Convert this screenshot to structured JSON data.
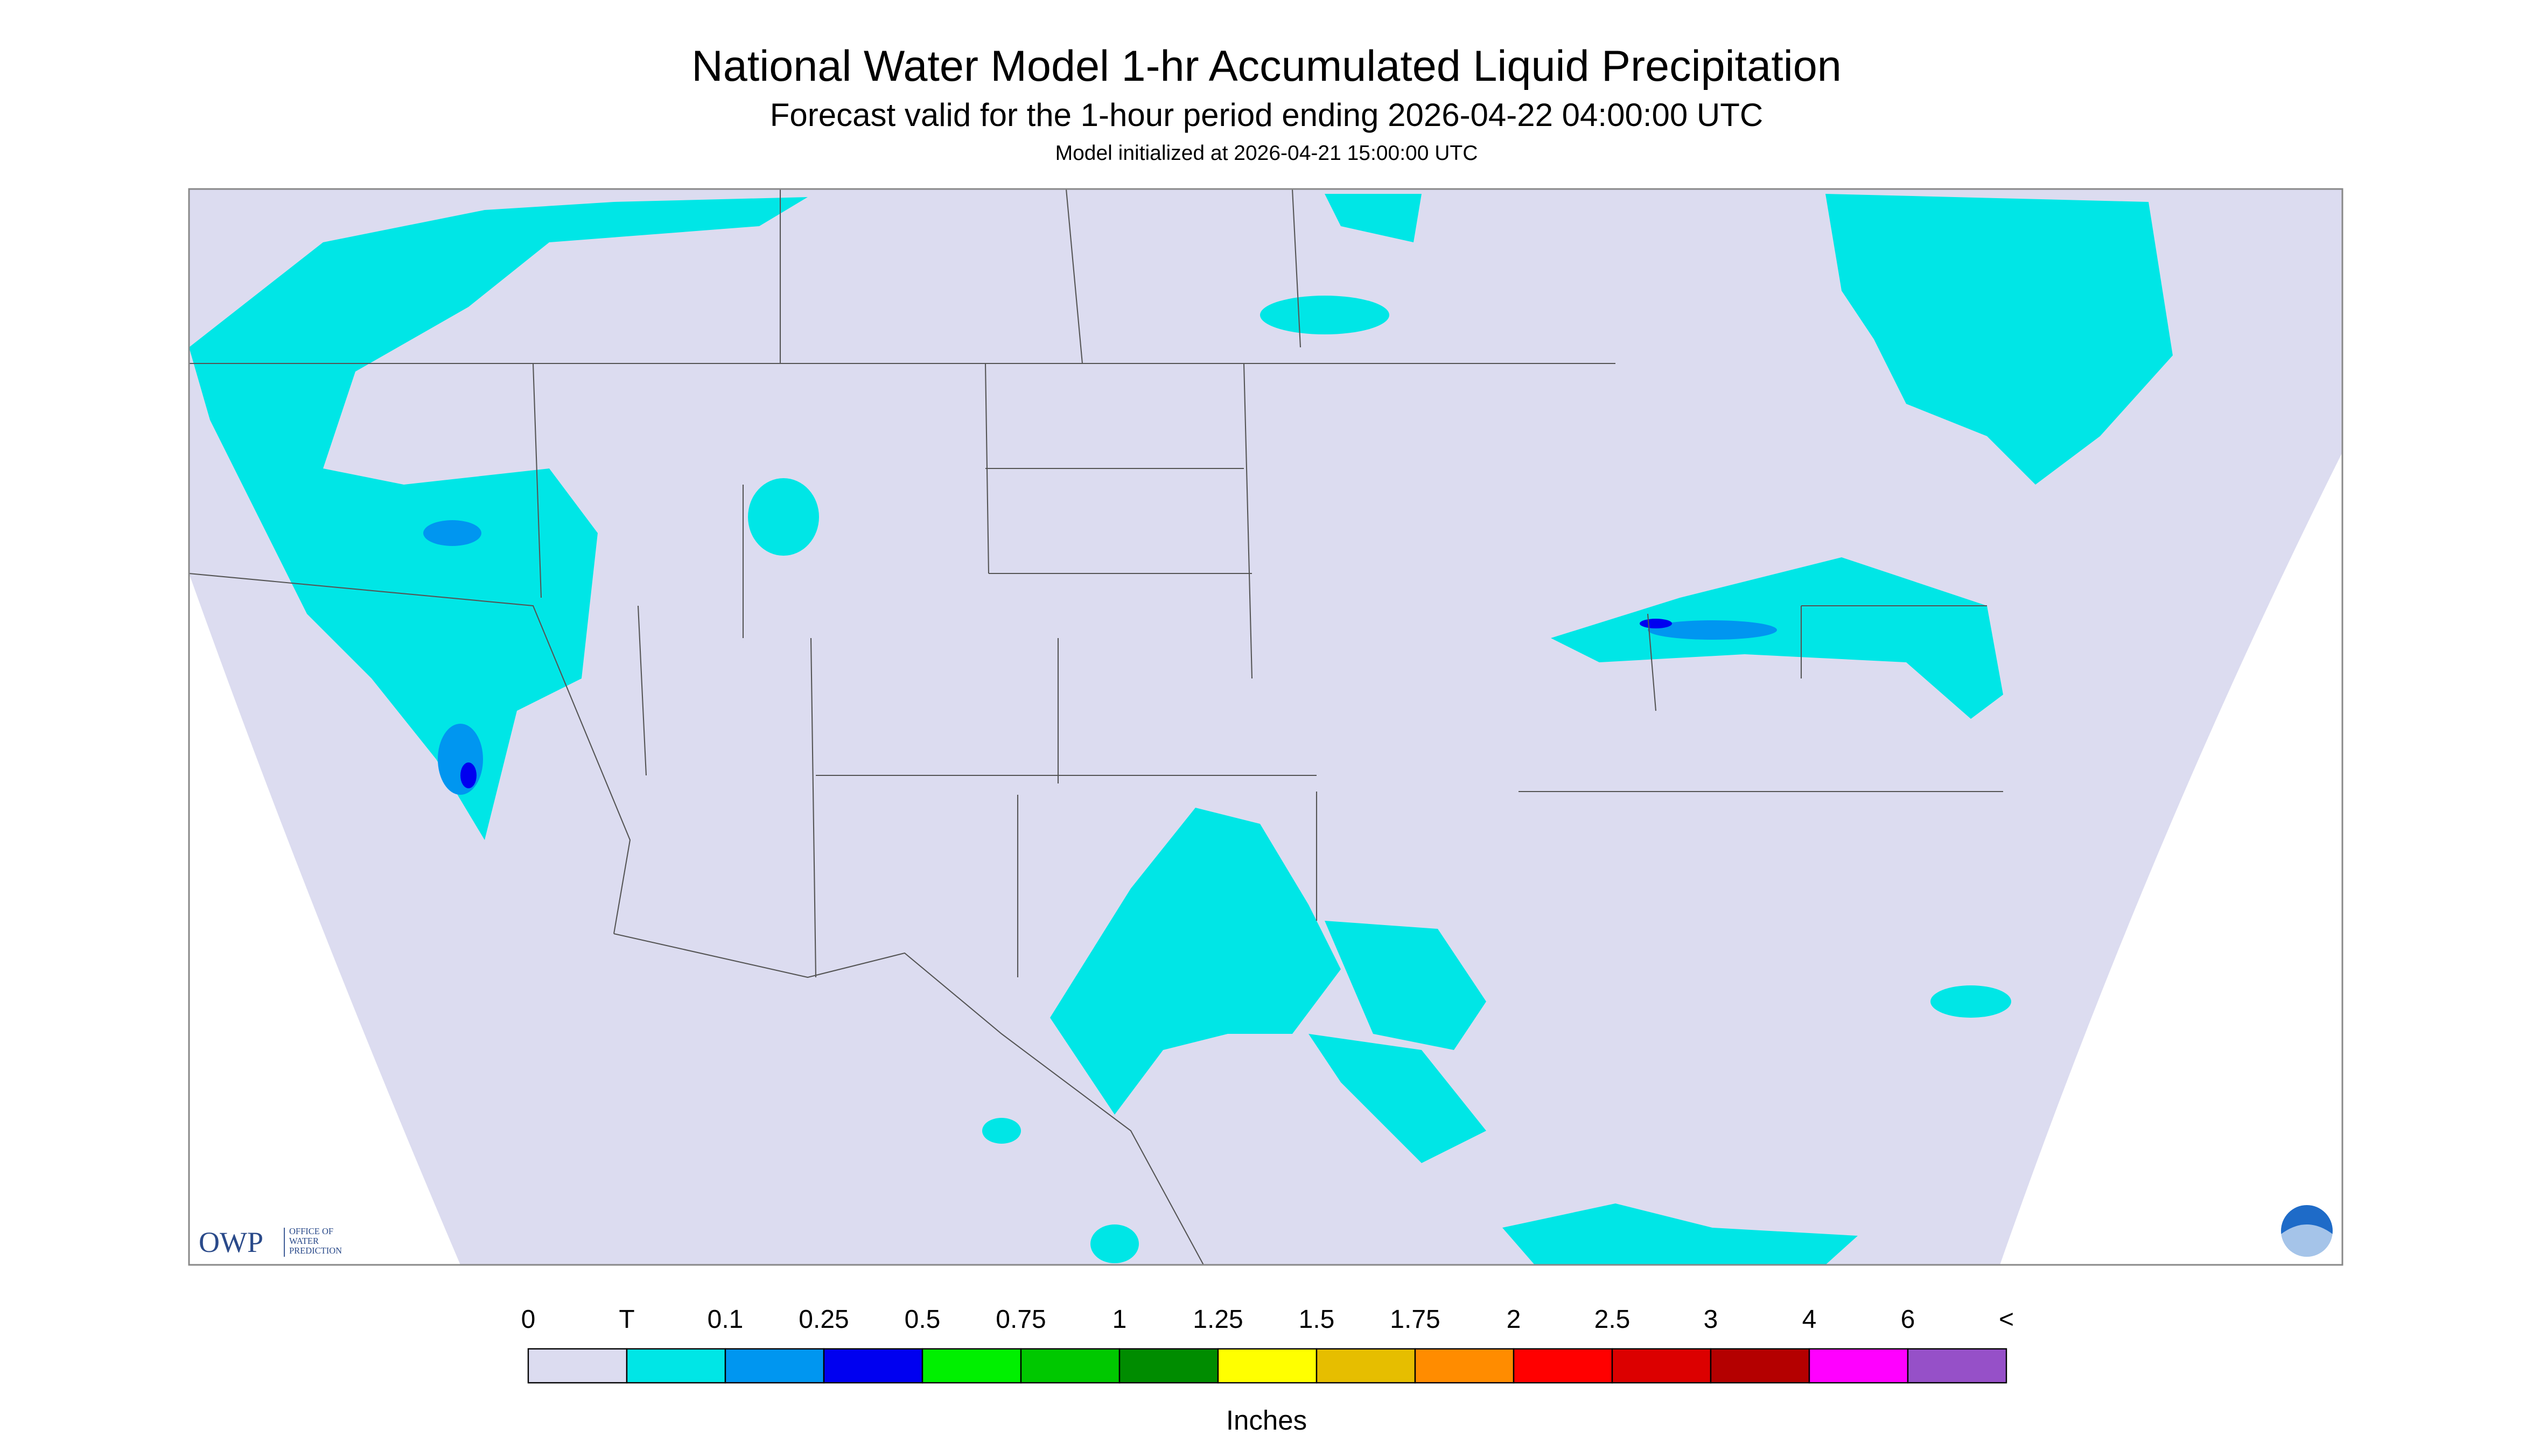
{
  "header": {
    "title": "National Water Model 1-hr Accumulated Liquid Precipitation",
    "subtitle": "Forecast valid for the 1-hour period ending 2026-04-22 04:00:00 UTC",
    "note": "Model initialized at 2026-04-21 15:00:00 UTC"
  },
  "logo": {
    "name": "OWP",
    "lines": [
      "OFFICE OF",
      "WATER",
      "PREDICTION"
    ]
  },
  "legend": {
    "labels": [
      "0",
      "T",
      "0.1",
      "0.25",
      "0.5",
      "0.75",
      "1",
      "1.25",
      "1.5",
      "1.75",
      "2",
      "2.5",
      "3",
      "4",
      "6",
      "<"
    ],
    "colors": [
      "#dcdcf0",
      "#00e6e6",
      "#0096f0",
      "#0000f0",
      "#00f000",
      "#00c800",
      "#008c00",
      "#ffff00",
      "#e6be00",
      "#ff8c00",
      "#ff0000",
      "#dc0000",
      "#b40000",
      "#ff00ff",
      "#9650c8"
    ],
    "unit": "Inches"
  }
}
